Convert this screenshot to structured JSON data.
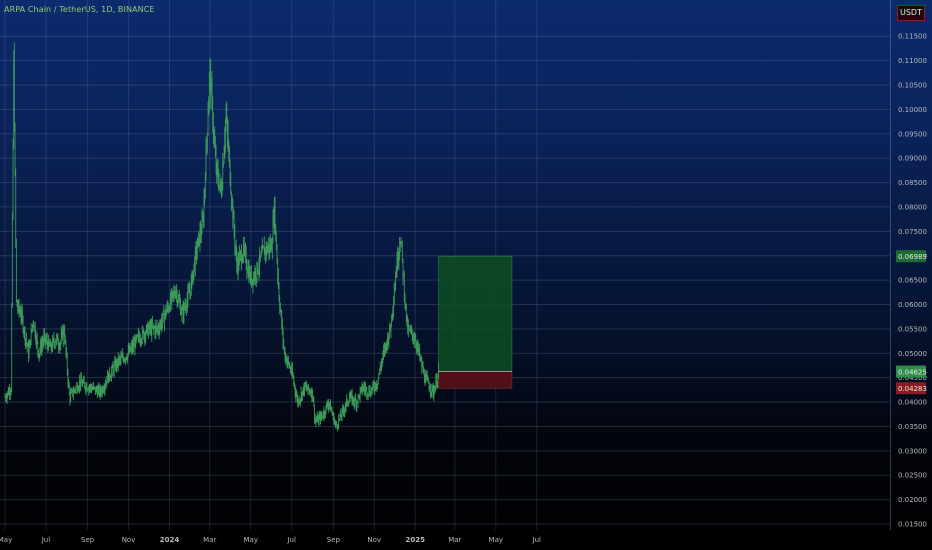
{
  "header": {
    "title": "ARPA Chain / TetherUS, 1D, BINANCE",
    "currency": "USDT"
  },
  "chart_data": {
    "type": "candlestick",
    "title": "ARPA Chain / TetherUS, 1D, BINANCE",
    "ylim": [
      0.013,
      0.1205
    ],
    "y_ticks": [
      "0.11500",
      "0.11000",
      "0.10500",
      "0.10000",
      "0.09500",
      "0.09000",
      "0.08500",
      "0.08000",
      "0.07500",
      "0.07000",
      "0.06500",
      "0.06000",
      "0.05500",
      "0.05000",
      "0.04500",
      "0.04000",
      "0.03500",
      "0.03000",
      "0.02500",
      "0.02000",
      "0.01500"
    ],
    "x_ticks": [
      "May",
      "Jul",
      "Sep",
      "Nov",
      "2024",
      "Mar",
      "May",
      "Jul",
      "Sep",
      "Nov",
      "2025",
      "Mar",
      "May",
      "Jul"
    ],
    "price_series": [
      [
        "2023-05-01",
        0.041
      ],
      [
        "2023-05-10",
        0.043
      ],
      [
        "2023-05-14",
        0.11
      ],
      [
        "2023-05-18",
        0.06
      ],
      [
        "2023-05-25",
        0.058
      ],
      [
        "2023-06-05",
        0.05
      ],
      [
        "2023-06-12",
        0.057
      ],
      [
        "2023-06-20",
        0.05
      ],
      [
        "2023-06-28",
        0.053
      ],
      [
        "2023-07-08",
        0.051
      ],
      [
        "2023-07-15",
        0.053
      ],
      [
        "2023-07-22",
        0.052
      ],
      [
        "2023-07-28",
        0.055
      ],
      [
        "2023-08-05",
        0.041
      ],
      [
        "2023-08-20",
        0.044
      ],
      [
        "2023-09-05",
        0.043
      ],
      [
        "2023-09-20",
        0.042
      ],
      [
        "2023-10-01",
        0.045
      ],
      [
        "2023-10-15",
        0.048
      ],
      [
        "2023-11-01",
        0.05
      ],
      [
        "2023-11-15",
        0.053
      ],
      [
        "2023-12-01",
        0.055
      ],
      [
        "2023-12-15",
        0.055
      ],
      [
        "2024-01-01",
        0.06
      ],
      [
        "2024-01-10",
        0.063
      ],
      [
        "2024-01-20",
        0.058
      ],
      [
        "2024-02-01",
        0.063
      ],
      [
        "2024-02-10",
        0.071
      ],
      [
        "2024-02-20",
        0.077
      ],
      [
        "2024-03-01",
        0.108
      ],
      [
        "2024-03-10",
        0.088
      ],
      [
        "2024-03-18",
        0.083
      ],
      [
        "2024-03-25",
        0.099
      ],
      [
        "2024-04-01",
        0.085
      ],
      [
        "2024-04-10",
        0.068
      ],
      [
        "2024-04-20",
        0.071
      ],
      [
        "2024-05-01",
        0.065
      ],
      [
        "2024-05-10",
        0.067
      ],
      [
        "2024-05-20",
        0.071
      ],
      [
        "2024-06-01",
        0.072
      ],
      [
        "2024-06-05",
        0.08
      ],
      [
        "2024-06-12",
        0.062
      ],
      [
        "2024-06-20",
        0.05
      ],
      [
        "2024-07-01",
        0.046
      ],
      [
        "2024-07-10",
        0.04
      ],
      [
        "2024-07-20",
        0.043
      ],
      [
        "2024-08-01",
        0.042
      ],
      [
        "2024-08-05",
        0.036
      ],
      [
        "2024-08-15",
        0.037
      ],
      [
        "2024-08-25",
        0.04
      ],
      [
        "2024-09-05",
        0.035
      ],
      [
        "2024-09-15",
        0.038
      ],
      [
        "2024-09-25",
        0.041
      ],
      [
        "2024-10-05",
        0.04
      ],
      [
        "2024-10-15",
        0.043
      ],
      [
        "2024-10-25",
        0.042
      ],
      [
        "2024-11-05",
        0.044
      ],
      [
        "2024-11-15",
        0.05
      ],
      [
        "2024-11-25",
        0.055
      ],
      [
        "2024-12-05",
        0.069
      ],
      [
        "2024-12-10",
        0.074
      ],
      [
        "2024-12-20",
        0.055
      ],
      [
        "2025-01-01",
        0.053
      ],
      [
        "2025-01-15",
        0.045
      ],
      [
        "2025-01-28",
        0.042
      ],
      [
        "2025-02-05",
        0.046
      ]
    ],
    "position": {
      "start": "2025-02-05",
      "end": "2025-05-25",
      "target": 0.06989,
      "entry": 0.04625,
      "stop": 0.04283
    },
    "price_labels": [
      {
        "text": "0.06989",
        "value": 0.06989,
        "role": "target"
      },
      {
        "text": "0.04625",
        "value": 0.04625,
        "role": "entry"
      },
      {
        "text": "0.04283",
        "value": 0.04283,
        "role": "stop"
      }
    ],
    "colors": {
      "candle": "#3d9c5a",
      "target_zone": "#0e4d22",
      "stop_zone": "#5a1018",
      "tick_text": "#b9b9b9",
      "title_text": "#8fcf6a"
    },
    "grid": true
  }
}
